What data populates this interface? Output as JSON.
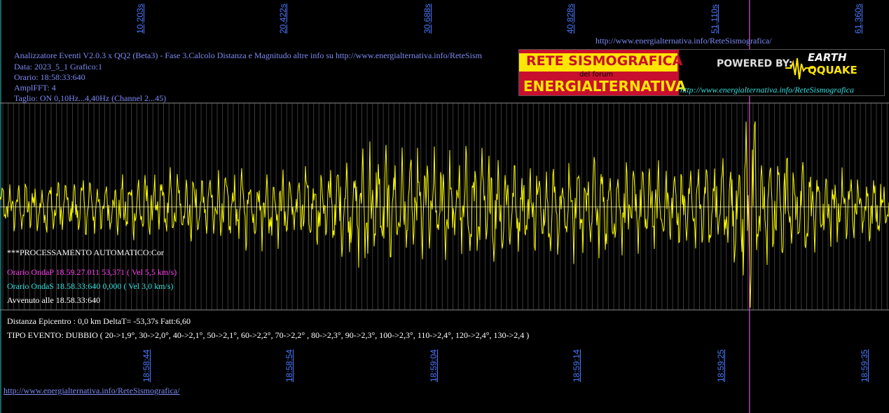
{
  "header": {
    "title": "Analizzatore Eventi V2.0.3 x QQ2 (Beta3) - Fase 3.Calcolo Distanza e Magnitudo altre info su http://www.energialternativa.info/ReteSism",
    "data": "Data: 2023_5_1 Grafico:1",
    "orario": "Orario: 18:58:33:640",
    "ampl": "AmplFFT: 4",
    "taglio": "Taglio: ON 0,10Hz...4,40Hz      (Channel 2...45)",
    "top_url": "http://www.energialternativa.info/ReteSismografica/"
  },
  "banner": {
    "line1": "RETE SISMOGRAFICA",
    "line2": "del forum",
    "line3": "ENERGIALTERNATIVA",
    "powered": "POWERED BY:",
    "logo_top": "EARTH",
    "logo_bottom": "QQUAKE",
    "url": "http://www.energialternativa.info/ReteSismografica"
  },
  "analysis": {
    "processing": "***PROCESSAMENTO AUTOMATICO:Cor",
    "onda_p": "Orario OndaP 18.59.27.011  53,371 ( Vel 5,5 km/s)",
    "onda_s": "Orario OndaS 18.58.33:640  0,000 ( Vel 3,0 km/s)",
    "avvenuto": "Avvenuto alle 18.58.33:640",
    "distanza": "Distanza Epicentro : 0,0 km DeltaT= -53,37s  Fatt:6,60",
    "tipo": "TIPO EVENTO: DUBBIO ( 20->1,9°, 30->2,0°, 40->2,1°, 50->2,1°, 60->2,2°, 70->2,2° , 80->2,3°, 90->2,3°, 100->2,3°, 110->2,4°, 120->2,4°, 130->2,4 )"
  },
  "footer": {
    "url": "http://www.energialternativa.info/ReteSismografica/"
  },
  "colors": {
    "background": "#000000",
    "trace": "#ffff00",
    "grid": "#3a3a3a",
    "marker": "#ff66ff",
    "axis_label": "#4a78ff",
    "info_text": "#7e8cf5"
  },
  "chart_data": {
    "type": "line",
    "title": "",
    "xlabel": "",
    "ylabel": "",
    "grid": true,
    "top_ticks": [
      "10,203s",
      "20,422s",
      "30,688s",
      "40,828s",
      "51,110s",
      "61,360s"
    ],
    "top_ticks_s": [
      10.203,
      20.422,
      30.688,
      40.828,
      51.11,
      61.36
    ],
    "bottom_ticks": [
      "18:58:44",
      "18:58:54",
      "18:59:04",
      "18:59:14",
      "18:59:25",
      "18:59:35"
    ],
    "marker_s": 53.371,
    "x_range_s": [
      0,
      63.3
    ],
    "series": [
      {
        "x_s": [
          0,
          2,
          4,
          6,
          8,
          10,
          12,
          14,
          16,
          18,
          20,
          22,
          24,
          25,
          26,
          27,
          28,
          30,
          32,
          34,
          35,
          36,
          38,
          40,
          42,
          44,
          46,
          48,
          50,
          52,
          53,
          53.5,
          54,
          55,
          56,
          57,
          58,
          60,
          62,
          63
        ],
        "amplitude": [
          0.3,
          0.3,
          0.35,
          0.35,
          0.32,
          0.38,
          0.4,
          0.42,
          0.4,
          0.45,
          0.42,
          0.48,
          0.5,
          0.6,
          0.7,
          0.75,
          0.6,
          0.65,
          0.6,
          0.62,
          0.75,
          0.55,
          0.5,
          0.55,
          0.62,
          0.5,
          0.48,
          0.5,
          0.58,
          0.65,
          1.05,
          1.15,
          0.85,
          0.7,
          0.6,
          0.55,
          0.45,
          0.4,
          0.38,
          0.35
        ]
      }
    ]
  }
}
